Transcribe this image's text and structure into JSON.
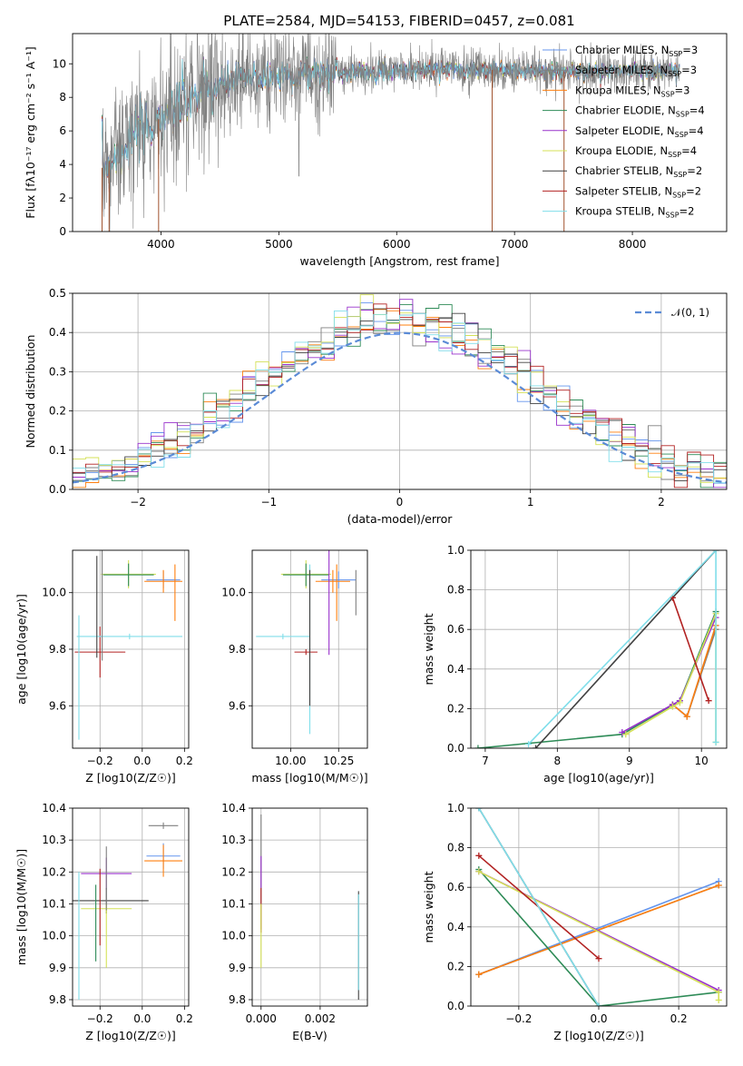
{
  "title": "PLATE=2584, MJD=54153, FIBERID=0457, z=0.081",
  "series_names": [
    "Chabrier MILES, N_SSP=3",
    "Salpeter MILES, N_SSP=3",
    "Kroupa MILES, N_SSP=3",
    "Chabrier ELODIE, N_SSP=4",
    "Salpeter ELODIE, N_SSP=4",
    "Kroupa ELODIE, N_SSP=4",
    "Chabrier STELIB, N_SSP=2",
    "Salpeter STELIB, N_SSP=2",
    "Kroupa STELIB, N_SSP=2"
  ],
  "legend_html": [
    "Chabrier MILES, N<tspan font-size='8' dy='3'>SSP</tspan><tspan dy='-3'>=3</tspan>",
    "Salpeter MILES, N<tspan font-size='8' dy='3'>SSP</tspan><tspan dy='-3'>=3</tspan>",
    "Kroupa MILES, N<tspan font-size='8' dy='3'>SSP</tspan><tspan dy='-3'>=3</tspan>",
    "Chabrier ELODIE, N<tspan font-size='8' dy='3'>SSP</tspan><tspan dy='-3'>=4</tspan>",
    "Salpeter ELODIE, N<tspan font-size='8' dy='3'>SSP</tspan><tspan dy='-3'>=4</tspan>",
    "Kroupa ELODIE, N<tspan font-size='8' dy='3'>SSP</tspan><tspan dy='-3'>=4</tspan>",
    "Chabrier STELIB, N<tspan font-size='8' dy='3'>SSP</tspan><tspan dy='-3'>=2</tspan>",
    "Salpeter STELIB, N<tspan font-size='8' dy='3'>SSP</tspan><tspan dy='-3'>=2</tspan>",
    "Kroupa STELIB, N<tspan font-size='8' dy='3'>SSP</tspan><tspan dy='-3'>=2</tspan>"
  ],
  "colors": [
    "#6495ed",
    "#7f7f7f",
    "#ff7f0e",
    "#2e8b57",
    "#9932cc",
    "#d4e157",
    "#404040",
    "#b22222",
    "#80deea"
  ],
  "chart_data": [
    {
      "id": "spectrum",
      "type": "line",
      "xlabel": "wavelength [Angstrom, rest frame]",
      "ylabel": "Flux [fλ10⁻¹⁷ erg cm⁻² s⁻¹ A⁻¹]",
      "xlim": [
        3250,
        8800
      ],
      "ylim": [
        0,
        11.8
      ],
      "xticks": [
        4000,
        5000,
        6000,
        7000,
        8000
      ],
      "yticks": [
        0,
        2,
        4,
        6,
        8,
        10
      ],
      "wavelength_range": [
        3500,
        8400
      ],
      "continuum": {
        "x": [
          3500,
          3800,
          4000,
          4300,
          4600,
          5000,
          5500,
          6000,
          6500,
          7000,
          7500,
          8000,
          8400
        ],
        "y": [
          3.8,
          5.8,
          6.8,
          8.2,
          9.0,
          9.3,
          9.5,
          9.6,
          9.7,
          9.6,
          9.5,
          9.6,
          9.6
        ]
      },
      "legend": "upper-right",
      "grid": false
    },
    {
      "id": "residuals",
      "type": "histogram",
      "xlabel": "(data-model)/error",
      "ylabel": "Normed distribution",
      "xlim": [
        -2.5,
        2.5
      ],
      "ylim": [
        0,
        0.5
      ],
      "xticks": [
        -2,
        -1,
        0,
        1,
        2
      ],
      "yticks": [
        0,
        0.1,
        0.2,
        0.3,
        0.4,
        0.5
      ],
      "reference_curve": "N(0,1)",
      "bin_width": 0.1,
      "legend": "upper-right",
      "grid": true
    },
    {
      "id": "age_vs_Z",
      "type": "scatter",
      "xlabel": "Z [log10(Z/Z☉)]",
      "ylabel": "age [log10(age/yr)]",
      "xlim": [
        -0.33,
        0.22
      ],
      "ylim": [
        9.45,
        10.15
      ],
      "xticks": [
        -0.2,
        0.0,
        0.2
      ],
      "yticks": [
        9.6,
        9.8,
        10.0
      ],
      "grid": true
    },
    {
      "id": "age_vs_mass",
      "type": "scatter",
      "xlabel": "mass [log10(M/M☉)]",
      "ylabel": "",
      "xlim": [
        9.8,
        10.4
      ],
      "ylim": [
        9.45,
        10.15
      ],
      "xticks": [
        10.0,
        10.25
      ],
      "yticks": [
        9.6,
        9.8,
        10.0
      ],
      "grid": true
    },
    {
      "id": "weight_vs_age",
      "type": "line",
      "xlabel": "age [log10(age/yr)]",
      "ylabel": "mass weight",
      "xlim": [
        6.8,
        10.35
      ],
      "ylim": [
        0,
        1
      ],
      "xticks": [
        7,
        8,
        9,
        10
      ],
      "yticks": [
        0,
        0.2,
        0.4,
        0.6,
        0.8,
        1.0
      ],
      "series": [
        {
          "x": [
            9.6,
            9.8,
            10.2
          ],
          "y": [
            0.22,
            0.16,
            0.62
          ]
        },
        {
          "x": [
            9.6,
            9.8,
            10.2
          ],
          "y": [
            0.22,
            0.16,
            0.6
          ]
        },
        {
          "x": [
            9.6,
            9.8,
            10.2
          ],
          "y": [
            0.22,
            0.16,
            0.62
          ]
        },
        {
          "x": [
            6.9,
            8.9,
            9.7,
            10.2
          ],
          "y": [
            0.0,
            0.07,
            0.24,
            0.69
          ]
        },
        {
          "x": [
            8.9,
            9.6,
            9.7,
            10.2
          ],
          "y": [
            0.08,
            0.22,
            0.24,
            0.66
          ]
        },
        {
          "x": [
            8.95,
            9.6,
            9.7,
            10.2,
            10.2
          ],
          "y": [
            0.07,
            0.21,
            0.23,
            0.68,
            0.03
          ]
        },
        {
          "x": [
            7.7,
            10.2
          ],
          "y": [
            0.0,
            1.0
          ]
        },
        {
          "x": [
            9.6,
            10.1
          ],
          "y": [
            0.76,
            0.24
          ]
        },
        {
          "x": [
            7.6,
            10.2,
            10.2
          ],
          "y": [
            0.02,
            1.0,
            0.03
          ]
        }
      ],
      "grid": true
    },
    {
      "id": "mass_vs_Z",
      "type": "scatter",
      "xlabel": "Z [log10(Z/Z☉)]",
      "ylabel": "mass [log10(M/M☉)]",
      "xlim": [
        -0.33,
        0.22
      ],
      "ylim": [
        9.78,
        10.4
      ],
      "xticks": [
        -0.2,
        0.0,
        0.2
      ],
      "yticks": [
        9.8,
        9.9,
        10.0,
        10.1,
        10.2,
        10.3,
        10.4
      ],
      "grid": true
    },
    {
      "id": "mass_vs_EBV",
      "type": "scatter",
      "xlabel": "E(B-V)",
      "ylabel": "",
      "xlim": [
        -0.0003,
        0.0036
      ],
      "ylim": [
        9.78,
        10.4
      ],
      "xticks": [
        0.0,
        0.002
      ],
      "yticks": [
        9.8,
        9.9,
        10.0,
        10.1,
        10.2,
        10.3,
        10.4
      ],
      "grid": true
    },
    {
      "id": "weight_vs_Z",
      "type": "line",
      "xlabel": "Z [log10(Z/Z☉)]",
      "ylabel": "mass weight",
      "xlim": [
        -0.32,
        0.32
      ],
      "ylim": [
        0,
        1
      ],
      "xticks": [
        -0.2,
        0.0,
        0.2
      ],
      "yticks": [
        0,
        0.2,
        0.4,
        0.6,
        0.8,
        1.0
      ],
      "series": [
        {
          "x": [
            -0.3,
            0.3
          ],
          "y": [
            0.16,
            0.63
          ]
        },
        {
          "x": [
            -0.3,
            0.3
          ],
          "y": [
            0.16,
            0.61
          ]
        },
        {
          "x": [
            -0.3,
            0.3
          ],
          "y": [
            0.16,
            0.61
          ]
        },
        {
          "x": [
            -0.3,
            0.0,
            0.3
          ],
          "y": [
            0.69,
            0.0,
            0.07
          ]
        },
        {
          "x": [
            -0.3,
            0.3
          ],
          "y": [
            0.68,
            0.08
          ]
        },
        {
          "x": [
            -0.3,
            0.3,
            0.3
          ],
          "y": [
            0.68,
            0.07,
            0.03
          ]
        },
        {
          "x": [
            -0.3,
            0.0
          ],
          "y": [
            1.0,
            0.0
          ]
        },
        {
          "x": [
            -0.3,
            0.0
          ],
          "y": [
            0.76,
            0.24
          ]
        },
        {
          "x": [
            -0.3,
            0.0
          ],
          "y": [
            1.0,
            0.0
          ]
        }
      ],
      "grid": true
    }
  ]
}
